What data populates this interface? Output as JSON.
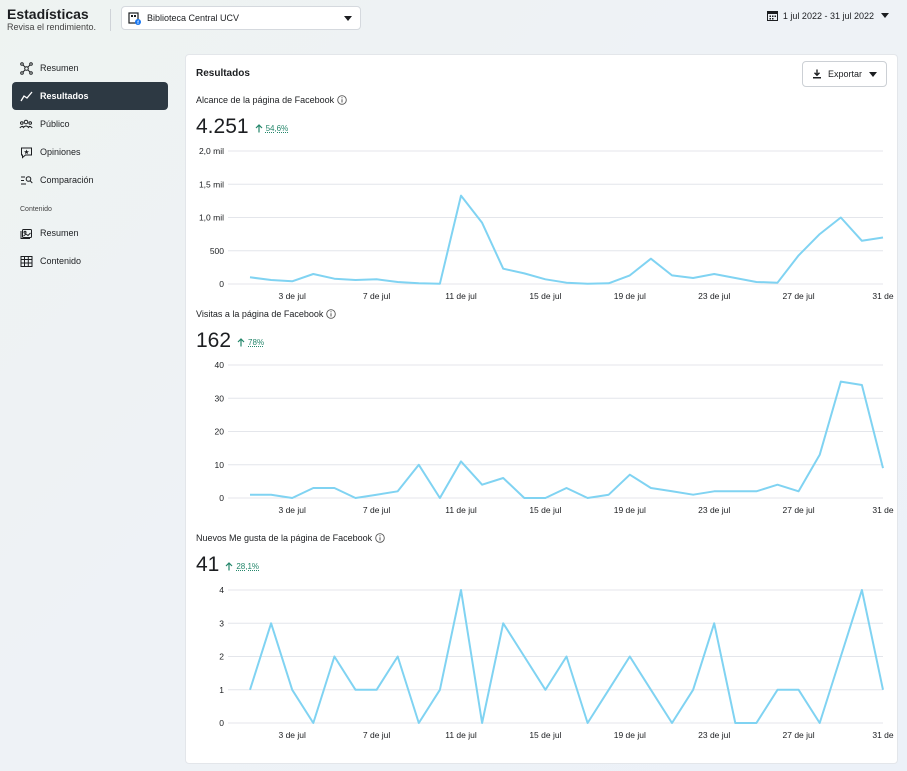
{
  "header": {
    "title": "Estadísticas",
    "subtitle": "Revisa el rendimiento.",
    "page_selector": "Biblioteca Central UCV",
    "date_range": "1 jul 2022 - 31 jul 2022"
  },
  "sidebar": {
    "items": [
      {
        "label": "Resumen",
        "icon": "overview-icon"
      },
      {
        "label": "Resultados",
        "icon": "results-icon",
        "active": true
      },
      {
        "label": "Público",
        "icon": "audience-icon"
      },
      {
        "label": "Opiniones",
        "icon": "feedback-icon"
      },
      {
        "label": "Comparación",
        "icon": "benchmark-icon"
      }
    ],
    "section_label": "Contenido",
    "content_items": [
      {
        "label": "Resumen",
        "icon": "content-overview-icon"
      },
      {
        "label": "Contenido",
        "icon": "table-icon"
      }
    ]
  },
  "card": {
    "title": "Resultados",
    "export_label": "Exportar"
  },
  "metrics": [
    {
      "label": "Alcance de la página de Facebook",
      "value": "4.251",
      "change": "54,6%"
    },
    {
      "label": "Visitas a la página de Facebook",
      "value": "162",
      "change": "78%"
    },
    {
      "label": "Nuevos Me gusta de la página de Facebook",
      "value": "41",
      "change": "28,1%"
    }
  ],
  "colors": {
    "line": "#80d3f2",
    "positive": "#23866a",
    "active_nav": "#2d3943"
  },
  "chart_data": [
    {
      "type": "line",
      "title": "Alcance de la página de Facebook",
      "x_ticks": [
        "3 de jul",
        "7 de jul",
        "11 de jul",
        "15 de jul",
        "19 de jul",
        "23 de jul",
        "27 de jul",
        "31 de"
      ],
      "x_tick_days": [
        3,
        7,
        11,
        15,
        19,
        23,
        27,
        31
      ],
      "y_ticks": [
        0,
        500,
        1000,
        1500,
        2000
      ],
      "y_tick_labels": [
        "0",
        "500",
        "1,0 mil",
        "1,5 mil",
        "2,0 mil"
      ],
      "ylim": [
        0,
        2000
      ],
      "grid": true,
      "x": [
        1,
        2,
        3,
        4,
        5,
        6,
        7,
        8,
        9,
        10,
        11,
        12,
        13,
        14,
        15,
        16,
        17,
        18,
        19,
        20,
        21,
        22,
        23,
        24,
        25,
        26,
        27,
        28,
        29,
        30,
        31
      ],
      "values": [
        100,
        60,
        40,
        150,
        80,
        60,
        70,
        30,
        10,
        5,
        1330,
        920,
        230,
        160,
        70,
        20,
        5,
        10,
        130,
        380,
        130,
        90,
        150,
        90,
        30,
        20,
        430,
        750,
        1000,
        650,
        700
      ]
    },
    {
      "type": "line",
      "title": "Visitas a la página de Facebook",
      "x_ticks": [
        "3 de jul",
        "7 de jul",
        "11 de jul",
        "15 de jul",
        "19 de jul",
        "23 de jul",
        "27 de jul",
        "31 de"
      ],
      "x_tick_days": [
        3,
        7,
        11,
        15,
        19,
        23,
        27,
        31
      ],
      "y_ticks": [
        0,
        10,
        20,
        30,
        40
      ],
      "y_tick_labels": [
        "0",
        "10",
        "20",
        "30",
        "40"
      ],
      "ylim": [
        0,
        40
      ],
      "grid": true,
      "x": [
        1,
        2,
        3,
        4,
        5,
        6,
        7,
        8,
        9,
        10,
        11,
        12,
        13,
        14,
        15,
        16,
        17,
        18,
        19,
        20,
        21,
        22,
        23,
        24,
        25,
        26,
        27,
        28,
        29,
        30,
        31
      ],
      "values": [
        1,
        1,
        0,
        3,
        3,
        0,
        1,
        2,
        10,
        0,
        11,
        4,
        6,
        0,
        0,
        3,
        0,
        1,
        7,
        3,
        2,
        1,
        2,
        2,
        2,
        4,
        2,
        13,
        35,
        34,
        9
      ]
    },
    {
      "type": "line",
      "title": "Nuevos Me gusta de la página de Facebook",
      "x_ticks": [
        "3 de jul",
        "7 de jul",
        "11 de jul",
        "15 de jul",
        "19 de jul",
        "23 de jul",
        "27 de jul",
        "31 de"
      ],
      "x_tick_days": [
        3,
        7,
        11,
        15,
        19,
        23,
        27,
        31
      ],
      "y_ticks": [
        0,
        1,
        2,
        3,
        4
      ],
      "y_tick_labels": [
        "0",
        "1",
        "2",
        "3",
        "4"
      ],
      "ylim": [
        0,
        4
      ],
      "grid": true,
      "x": [
        1,
        2,
        3,
        4,
        5,
        6,
        7,
        8,
        9,
        10,
        11,
        12,
        13,
        14,
        15,
        16,
        17,
        18,
        19,
        20,
        21,
        22,
        23,
        24,
        25,
        26,
        27,
        28,
        29,
        30,
        31
      ],
      "values": [
        1,
        3,
        1,
        0,
        2,
        1,
        1,
        2,
        0,
        1,
        4,
        0,
        3,
        2,
        1,
        2,
        0,
        1,
        2,
        1,
        0,
        1,
        3,
        0,
        0,
        1,
        1,
        0,
        2,
        4,
        1
      ]
    }
  ]
}
